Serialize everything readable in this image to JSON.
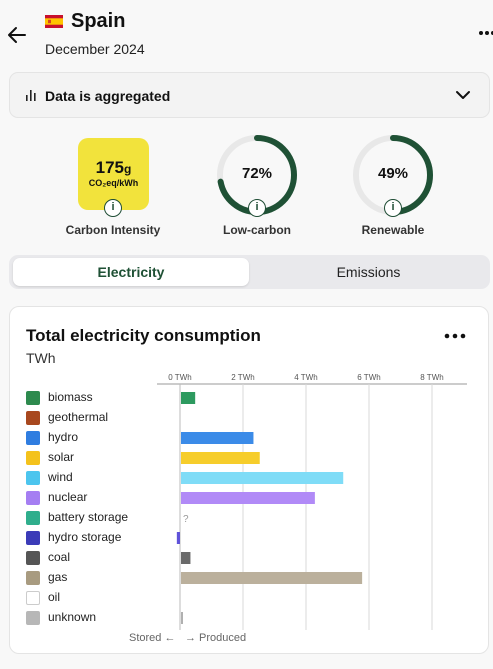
{
  "header": {
    "country": "Spain",
    "date": "December 2024",
    "flag": "spain-flag-icon"
  },
  "aggregate": {
    "label": "Data is aggregated"
  },
  "metrics": {
    "carbon_intensity": {
      "value": "175",
      "value_unit": "g",
      "unit": "CO₂eq/kWh",
      "label": "Carbon Intensity",
      "color": "#f2e33c"
    },
    "low_carbon": {
      "percent_text": "72%",
      "fraction": 0.72,
      "label": "Low-carbon"
    },
    "renewable": {
      "percent_text": "49%",
      "fraction": 0.49,
      "label": "Renewable"
    },
    "ring_color": "#1f5135",
    "ring_track_color": "#e8e8e8"
  },
  "tabs": {
    "electricity": "Electricity",
    "emissions": "Emissions",
    "active": "electricity"
  },
  "card": {
    "title": "Total electricity consumption",
    "unit": "TWh",
    "footer_stored": "Stored ←",
    "footer_produced": "→ Produced",
    "missing_marker": "?"
  },
  "chart_data": {
    "type": "bar",
    "orientation": "horizontal",
    "xlabel": "",
    "ylabel": "",
    "ticks": [
      "0 TWh",
      "2 TWh",
      "4 TWh",
      "6 TWh",
      "8 TWh"
    ],
    "xlim": [
      0,
      8.5
    ],
    "categories": [
      "biomass",
      "geothermal",
      "hydro",
      "solar",
      "wind",
      "nuclear",
      "battery storage",
      "hydro storage",
      "coal",
      "gas",
      "oil",
      "unknown"
    ],
    "values": [
      0.45,
      0,
      2.3,
      2.5,
      5.15,
      4.25,
      null,
      -0.1,
      0.3,
      5.75,
      0,
      0.05
    ],
    "colors": [
      "#2d9a5f",
      "#a8481f",
      "#3b8be8",
      "#f6cd2b",
      "#7fdcf7",
      "#b18af7",
      "#35b394",
      "#5f52d9",
      "#6a6a6a",
      "#bbb09c",
      "#8a8a8a",
      "#b0b0b0"
    ],
    "icons": [
      "biomass-icon",
      "geothermal-icon",
      "hydro-icon",
      "solar-icon",
      "wind-icon",
      "nuclear-icon",
      "battery-storage-icon",
      "hydro-storage-icon",
      "coal-icon",
      "gas-icon",
      "oil-icon",
      "unknown-icon"
    ],
    "icon_bg": [
      "#2d8a4e",
      "#a8481f",
      "#2f7de0",
      "#f4c21c",
      "#4cc5ee",
      "#a57ef2",
      "#2fae8c",
      "#3b3bb8",
      "#555555",
      "#a89b80",
      "#ffffff",
      "#b7b7b7"
    ],
    "grid": true
  }
}
